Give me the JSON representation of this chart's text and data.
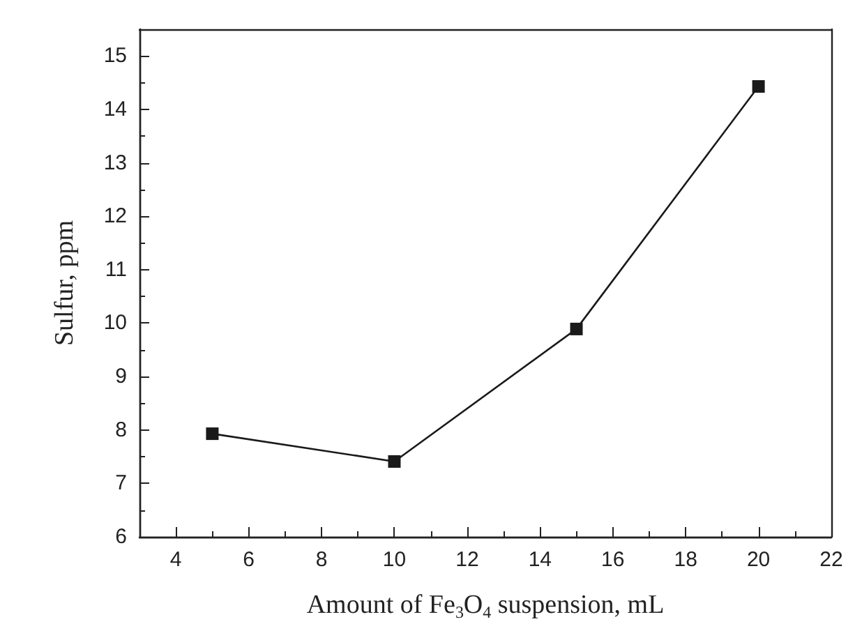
{
  "chart_data": {
    "type": "line",
    "xlabel": "Amount of Fe$_{3}$O$_{4}$ suspension, mL",
    "ylabel": "Sulfur, ppm",
    "x": [
      5,
      10,
      15,
      20
    ],
    "series": [
      {
        "color": "#1a1a1a",
        "values": [
          7.93,
          7.41,
          9.89,
          14.43
        ]
      }
    ],
    "xlim": [
      3,
      22
    ],
    "xticks": [
      4,
      6,
      8,
      10,
      12,
      14,
      16,
      18,
      20,
      22
    ],
    "ylim": [
      6,
      15.5
    ],
    "yticks": [
      6,
      7,
      8,
      9,
      10,
      11,
      12,
      13,
      14,
      15
    ],
    "marker": "square",
    "line_style": "solid",
    "grid": false
  }
}
